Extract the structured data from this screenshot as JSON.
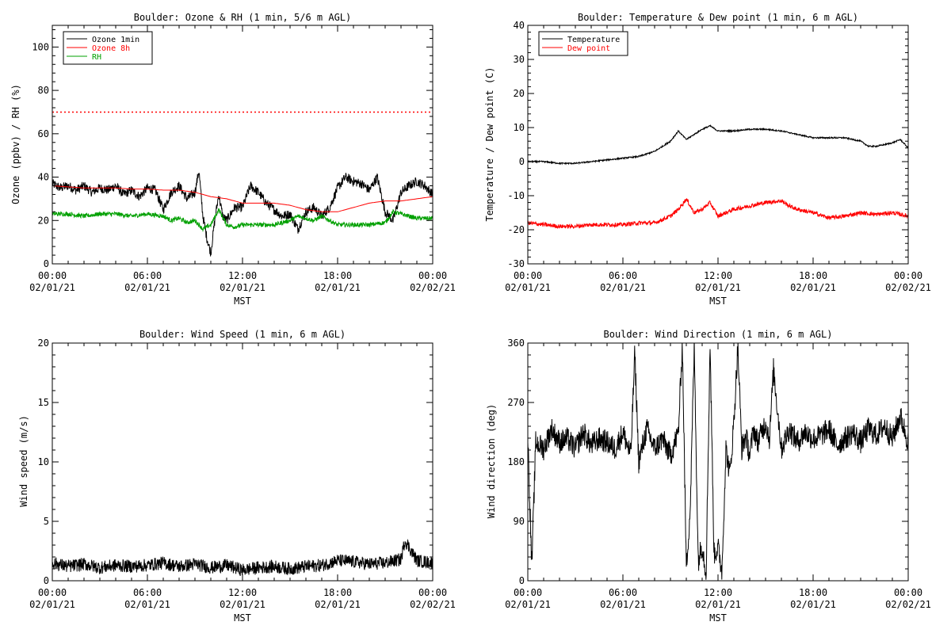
{
  "chart_data": [
    {
      "id": "ozone_rh",
      "type": "line",
      "title": "Boulder: Ozone & RH (1 min, 5/6 m AGL)",
      "xlabel": "MST",
      "ylabel": "Ozone (ppbv) / RH (%)",
      "xlim": [
        "02/01/21 00:00",
        "02/02/21 00:00"
      ],
      "ylim": [
        0,
        110
      ],
      "yticks": [
        0,
        20,
        40,
        60,
        80,
        100
      ],
      "xticks": [
        {
          "h": 0,
          "time": "00:00",
          "date": "02/01/21"
        },
        {
          "h": 6,
          "time": "06:00",
          "date": "02/01/21"
        },
        {
          "h": 12,
          "time": "12:00",
          "date": "02/01/21"
        },
        {
          "h": 18,
          "time": "18:00",
          "date": "02/01/21"
        },
        {
          "h": 24,
          "time": "00:00",
          "date": "02/02/21"
        }
      ],
      "grid": false,
      "legend": "top-left",
      "reference_lines": [
        {
          "y": 70,
          "color": "#ff0000",
          "style": "dotted"
        }
      ],
      "series": [
        {
          "name": "Ozone 1min",
          "color": "#000000",
          "x": [
            0,
            0.5,
            1,
            1.5,
            2,
            2.5,
            3,
            3.5,
            4,
            4.5,
            5,
            5.5,
            6,
            6.5,
            7,
            7.5,
            8,
            8.5,
            9,
            9.25,
            9.5,
            9.75,
            10,
            10.25,
            10.5,
            10.75,
            11,
            11.5,
            12,
            12.5,
            13,
            13.5,
            14,
            14.5,
            15,
            15.5,
            16,
            16.5,
            17,
            17.5,
            18,
            18.5,
            19,
            19.5,
            20,
            20.5,
            21,
            21.5,
            22,
            22.5,
            23,
            23.5,
            24
          ],
          "y": [
            37,
            35,
            36,
            34,
            36,
            33,
            35,
            34,
            36,
            32,
            34,
            31,
            35,
            34,
            25,
            33,
            36,
            30,
            33,
            43,
            22,
            12,
            5,
            20,
            32,
            22,
            20,
            26,
            26,
            36,
            33,
            28,
            25,
            22,
            23,
            16,
            24,
            26,
            22,
            26,
            35,
            40,
            38,
            37,
            34,
            40,
            24,
            20,
            33,
            36,
            38,
            36,
            32
          ]
        },
        {
          "name": "Ozone 8h",
          "color": "#ff0000",
          "x": [
            0,
            1,
            2,
            3,
            4,
            5,
            6,
            7,
            8,
            9,
            10,
            11,
            12,
            13,
            14,
            15,
            16,
            17,
            18,
            19,
            20,
            21,
            22,
            23,
            24
          ],
          "y": [
            36,
            35.5,
            35,
            35,
            35,
            34.5,
            34.5,
            34,
            34,
            33,
            31,
            30,
            28,
            28,
            28,
            27,
            25,
            24,
            24,
            26,
            28,
            29,
            29,
            30,
            31
          ]
        },
        {
          "name": "RH",
          "color": "#00a000",
          "x": [
            0,
            1,
            2,
            3,
            4,
            5,
            6,
            7,
            7.5,
            8,
            8.5,
            9,
            9.5,
            10,
            10.5,
            11,
            11.5,
            12,
            13,
            14,
            15,
            15.5,
            16,
            16.5,
            17,
            18,
            19,
            20,
            21,
            21.5,
            22,
            23,
            24
          ],
          "y": [
            23,
            23,
            22,
            23,
            23,
            22,
            23,
            22,
            20,
            21,
            19,
            20,
            16,
            18,
            25,
            18,
            17,
            18,
            18,
            18,
            20,
            22,
            21,
            20,
            22,
            18,
            18,
            18,
            19,
            24,
            23,
            21,
            21
          ]
        }
      ]
    },
    {
      "id": "temp_dew",
      "type": "line",
      "title": "Boulder: Temperature & Dew point (1 min, 6 m AGL)",
      "xlabel": "MST",
      "ylabel": "Temperature / Dew point (C)",
      "xlim": [
        "02/01/21 00:00",
        "02/02/21 00:00"
      ],
      "ylim": [
        -30,
        40
      ],
      "yticks": [
        -30,
        -20,
        -10,
        0,
        10,
        20,
        30,
        40
      ],
      "xticks": [
        {
          "h": 0,
          "time": "00:00",
          "date": "02/01/21"
        },
        {
          "h": 6,
          "time": "06:00",
          "date": "02/01/21"
        },
        {
          "h": 12,
          "time": "12:00",
          "date": "02/01/21"
        },
        {
          "h": 18,
          "time": "18:00",
          "date": "02/01/21"
        },
        {
          "h": 24,
          "time": "00:00",
          "date": "02/02/21"
        }
      ],
      "grid": false,
      "legend": "top-left",
      "series": [
        {
          "name": "Temperature",
          "color": "#000000",
          "x": [
            0,
            1,
            2,
            3,
            4,
            5,
            6,
            7,
            8,
            9,
            9.5,
            10,
            10.5,
            11,
            11.5,
            12,
            13,
            14,
            15,
            16,
            17,
            18,
            19,
            20,
            21,
            21.5,
            22,
            23,
            23.5,
            24
          ],
          "y": [
            0,
            0,
            -0.5,
            -0.5,
            0,
            0.5,
            1,
            1.5,
            3,
            6,
            9,
            6.5,
            8,
            9.5,
            10.5,
            9,
            9,
            9.5,
            9.5,
            9,
            8,
            7,
            7,
            7,
            6,
            4.5,
            4.5,
            5.5,
            6.5,
            4
          ]
        },
        {
          "name": "Dew point",
          "color": "#ff0000",
          "x": [
            0,
            1,
            2,
            3,
            4,
            5,
            6,
            7,
            8,
            8.5,
            9,
            9.5,
            10,
            10.5,
            11,
            11.5,
            12,
            13,
            14,
            15,
            16,
            16.5,
            17,
            18,
            19,
            20,
            21,
            22,
            23,
            24
          ],
          "y": [
            -18,
            -18.5,
            -19,
            -19,
            -18.5,
            -18.5,
            -18.5,
            -18,
            -18,
            -17,
            -16,
            -14,
            -11,
            -15,
            -14,
            -12,
            -16,
            -14,
            -13,
            -12,
            -11.5,
            -13,
            -14,
            -15,
            -16.5,
            -16,
            -15,
            -15.5,
            -15,
            -16
          ]
        }
      ]
    },
    {
      "id": "wind_speed",
      "type": "line",
      "title": "Boulder: Wind Speed (1 min, 6 m AGL)",
      "xlabel": "MST",
      "ylabel": "Wind speed (m/s)",
      "xlim": [
        "02/01/21 00:00",
        "02/02/21 00:00"
      ],
      "ylim": [
        0,
        20
      ],
      "yticks": [
        0,
        5,
        10,
        15,
        20
      ],
      "xticks": [
        {
          "h": 0,
          "time": "00:00",
          "date": "02/01/21"
        },
        {
          "h": 6,
          "time": "06:00",
          "date": "02/01/21"
        },
        {
          "h": 12,
          "time": "12:00",
          "date": "02/01/21"
        },
        {
          "h": 18,
          "time": "18:00",
          "date": "02/01/21"
        },
        {
          "h": 24,
          "time": "00:00",
          "date": "02/02/21"
        }
      ],
      "grid": false,
      "series": [
        {
          "name": "Wind speed",
          "color": "#000000",
          "x": [
            0,
            1,
            2,
            3,
            4,
            5,
            6,
            7,
            8,
            9,
            10,
            11,
            12,
            13,
            14,
            15,
            16,
            17,
            18,
            19,
            20,
            21,
            22,
            22.25,
            23,
            24
          ],
          "y": [
            1.5,
            1.2,
            1.4,
            1.1,
            1.3,
            1.2,
            1.3,
            1.5,
            1.2,
            1.4,
            1.1,
            1.3,
            0.9,
            1.1,
            1.2,
            1.0,
            1.2,
            1.3,
            1.7,
            1.6,
            1.4,
            1.5,
            1.8,
            3.4,
            1.7,
            1.5
          ]
        }
      ]
    },
    {
      "id": "wind_dir",
      "type": "line",
      "title": "Boulder: Wind Direction (1 min, 6 m AGL)",
      "xlabel": "MST",
      "ylabel": "Wind direction (deg)",
      "xlim": [
        "02/01/21 00:00",
        "02/02/21 00:00"
      ],
      "ylim": [
        0,
        360
      ],
      "yticks": [
        0,
        90,
        180,
        270,
        360
      ],
      "xticks": [
        {
          "h": 0,
          "time": "00:00",
          "date": "02/01/21"
        },
        {
          "h": 6,
          "time": "06:00",
          "date": "02/01/21"
        },
        {
          "h": 12,
          "time": "12:00",
          "date": "02/01/21"
        },
        {
          "h": 18,
          "time": "18:00",
          "date": "02/01/21"
        },
        {
          "h": 24,
          "time": "00:00",
          "date": "02/02/21"
        }
      ],
      "grid": false,
      "series": [
        {
          "name": "Wind direction",
          "color": "#000000",
          "x": [
            0,
            0.25,
            0.5,
            1,
            1.5,
            2,
            2.5,
            3,
            3.5,
            4,
            4.5,
            5,
            5.5,
            6,
            6.5,
            6.75,
            7,
            7.5,
            8,
            8.5,
            9,
            9.5,
            9.75,
            10,
            10.25,
            10.5,
            10.75,
            11,
            11.25,
            11.5,
            11.75,
            12,
            12.25,
            12.5,
            12.75,
            13,
            13.25,
            13.5,
            13.75,
            14,
            14.25,
            14.5,
            15,
            15.25,
            15.5,
            16,
            16.5,
            17,
            17.5,
            18,
            18.5,
            19,
            19.5,
            20,
            20.5,
            21,
            21.5,
            22,
            22.5,
            23,
            23.5,
            24
          ],
          "y": [
            220,
            20,
            210,
            200,
            230,
            210,
            215,
            200,
            225,
            205,
            215,
            210,
            200,
            225,
            190,
            345,
            180,
            230,
            200,
            215,
            190,
            225,
            360,
            20,
            110,
            355,
            30,
            55,
            10,
            360,
            40,
            50,
            15,
            200,
            160,
            240,
            355,
            200,
            220,
            190,
            230,
            210,
            240,
            215,
            320,
            200,
            230,
            210,
            225,
            215,
            220,
            230,
            205,
            215,
            225,
            210,
            230,
            220,
            235,
            215,
            250,
            210
          ]
        }
      ]
    }
  ]
}
